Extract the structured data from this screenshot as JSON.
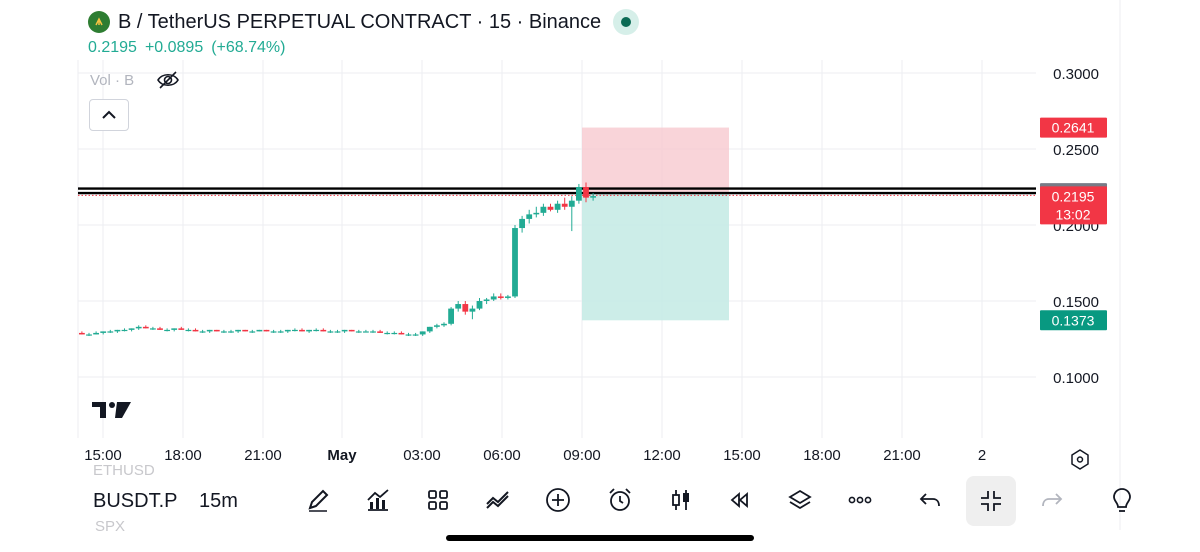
{
  "header": {
    "title": "B / TetherUS PERPETUAL CONTRACT · 15 · Binance",
    "last_price": "0.2195",
    "change": "+0.0895",
    "change_pct": "(+68.74%)",
    "vol_label": "Vol · B"
  },
  "colors": {
    "up": "#22ab94",
    "down": "#f23645",
    "text": "#131722",
    "grid": "#eceef2",
    "stop_zone": "#f7c9cf",
    "target_zone": "#c7ebe5"
  },
  "chart_data": {
    "type": "candlestick",
    "y_ticks": [
      "0.3000",
      "0.2500",
      "0.2000",
      "0.1500",
      "0.1000"
    ],
    "y_tick_values": [
      0.3,
      0.25,
      0.2,
      0.15,
      0.1
    ],
    "x_ticks": [
      "15:00",
      "18:00",
      "21:00",
      "May",
      "03:00",
      "06:00",
      "09:00",
      "12:00",
      "15:00",
      "18:00",
      "21:00",
      "2"
    ],
    "x_tick_bold": [
      false,
      false,
      false,
      true,
      false,
      false,
      false,
      false,
      false,
      false,
      false,
      false
    ],
    "horizontal_lines": [
      0.224,
      0.221
    ],
    "current_price_line": 0.2195,
    "price_labels": [
      {
        "value": 0.2641,
        "text": "0.2641",
        "kind": "stop"
      },
      {
        "value": 0.221,
        "text": "0.2210",
        "kind": "line"
      },
      {
        "value": 0.2195,
        "text": "0.2195",
        "kind": "current",
        "sub": "13:02"
      },
      {
        "value": 0.1373,
        "text": "0.1373",
        "kind": "target"
      }
    ],
    "position": {
      "entry": 0.221,
      "stop": 0.2641,
      "target": 0.1373,
      "side": "short"
    },
    "candles": [
      [
        0.129,
        0.13,
        0.128,
        0.128
      ],
      [
        0.128,
        0.129,
        0.127,
        0.128
      ],
      [
        0.128,
        0.13,
        0.128,
        0.129
      ],
      [
        0.129,
        0.13,
        0.128,
        0.13
      ],
      [
        0.13,
        0.131,
        0.129,
        0.13
      ],
      [
        0.13,
        0.131,
        0.129,
        0.131
      ],
      [
        0.131,
        0.132,
        0.13,
        0.131
      ],
      [
        0.131,
        0.132,
        0.13,
        0.132
      ],
      [
        0.132,
        0.134,
        0.131,
        0.133
      ],
      [
        0.133,
        0.134,
        0.132,
        0.132
      ],
      [
        0.132,
        0.133,
        0.131,
        0.132
      ],
      [
        0.132,
        0.133,
        0.131,
        0.131
      ],
      [
        0.131,
        0.132,
        0.13,
        0.131
      ],
      [
        0.131,
        0.132,
        0.13,
        0.132
      ],
      [
        0.132,
        0.133,
        0.131,
        0.131
      ],
      [
        0.131,
        0.132,
        0.13,
        0.131
      ],
      [
        0.131,
        0.132,
        0.13,
        0.13
      ],
      [
        0.13,
        0.131,
        0.129,
        0.13
      ],
      [
        0.13,
        0.131,
        0.129,
        0.131
      ],
      [
        0.131,
        0.131,
        0.13,
        0.13
      ],
      [
        0.13,
        0.131,
        0.129,
        0.13
      ],
      [
        0.13,
        0.131,
        0.129,
        0.13
      ],
      [
        0.13,
        0.131,
        0.129,
        0.131
      ],
      [
        0.131,
        0.131,
        0.13,
        0.13
      ],
      [
        0.13,
        0.131,
        0.129,
        0.13
      ],
      [
        0.13,
        0.131,
        0.13,
        0.131
      ],
      [
        0.131,
        0.131,
        0.13,
        0.13
      ],
      [
        0.13,
        0.131,
        0.129,
        0.13
      ],
      [
        0.13,
        0.131,
        0.129,
        0.13
      ],
      [
        0.13,
        0.131,
        0.129,
        0.131
      ],
      [
        0.131,
        0.132,
        0.13,
        0.131
      ],
      [
        0.131,
        0.132,
        0.13,
        0.13
      ],
      [
        0.13,
        0.131,
        0.129,
        0.131
      ],
      [
        0.131,
        0.132,
        0.13,
        0.131
      ],
      [
        0.131,
        0.132,
        0.13,
        0.13
      ],
      [
        0.13,
        0.131,
        0.129,
        0.13
      ],
      [
        0.13,
        0.131,
        0.129,
        0.13
      ],
      [
        0.13,
        0.131,
        0.129,
        0.131
      ],
      [
        0.131,
        0.131,
        0.13,
        0.13
      ],
      [
        0.13,
        0.131,
        0.129,
        0.13
      ],
      [
        0.13,
        0.131,
        0.13,
        0.13
      ],
      [
        0.13,
        0.131,
        0.129,
        0.13
      ],
      [
        0.13,
        0.131,
        0.129,
        0.129
      ],
      [
        0.129,
        0.13,
        0.128,
        0.129
      ],
      [
        0.129,
        0.13,
        0.128,
        0.129
      ],
      [
        0.129,
        0.13,
        0.128,
        0.128
      ],
      [
        0.128,
        0.129,
        0.127,
        0.128
      ],
      [
        0.128,
        0.129,
        0.127,
        0.128
      ],
      [
        0.128,
        0.13,
        0.127,
        0.13
      ],
      [
        0.13,
        0.133,
        0.129,
        0.133
      ],
      [
        0.133,
        0.135,
        0.132,
        0.134
      ],
      [
        0.134,
        0.136,
        0.133,
        0.135
      ],
      [
        0.135,
        0.146,
        0.134,
        0.145
      ],
      [
        0.145,
        0.15,
        0.143,
        0.148
      ],
      [
        0.148,
        0.15,
        0.141,
        0.143
      ],
      [
        0.143,
        0.147,
        0.138,
        0.145
      ],
      [
        0.145,
        0.152,
        0.144,
        0.15
      ],
      [
        0.15,
        0.152,
        0.148,
        0.151
      ],
      [
        0.151,
        0.155,
        0.15,
        0.153
      ],
      [
        0.153,
        0.155,
        0.151,
        0.152
      ],
      [
        0.152,
        0.154,
        0.151,
        0.153
      ],
      [
        0.153,
        0.2,
        0.152,
        0.198
      ],
      [
        0.198,
        0.206,
        0.195,
        0.204
      ],
      [
        0.204,
        0.21,
        0.201,
        0.207
      ],
      [
        0.207,
        0.212,
        0.205,
        0.208
      ],
      [
        0.208,
        0.214,
        0.206,
        0.212
      ],
      [
        0.212,
        0.214,
        0.209,
        0.21
      ],
      [
        0.21,
        0.216,
        0.208,
        0.214
      ],
      [
        0.214,
        0.218,
        0.21,
        0.212
      ],
      [
        0.212,
        0.219,
        0.196,
        0.216
      ],
      [
        0.216,
        0.227,
        0.214,
        0.225
      ],
      [
        0.225,
        0.228,
        0.215,
        0.218
      ],
      [
        0.218,
        0.221,
        0.216,
        0.219
      ]
    ]
  },
  "toolbar": {
    "ghost_above": "ETHUSD",
    "symbol": "BUSDT.P",
    "interval": "15m",
    "ghost_below": "SPX"
  }
}
